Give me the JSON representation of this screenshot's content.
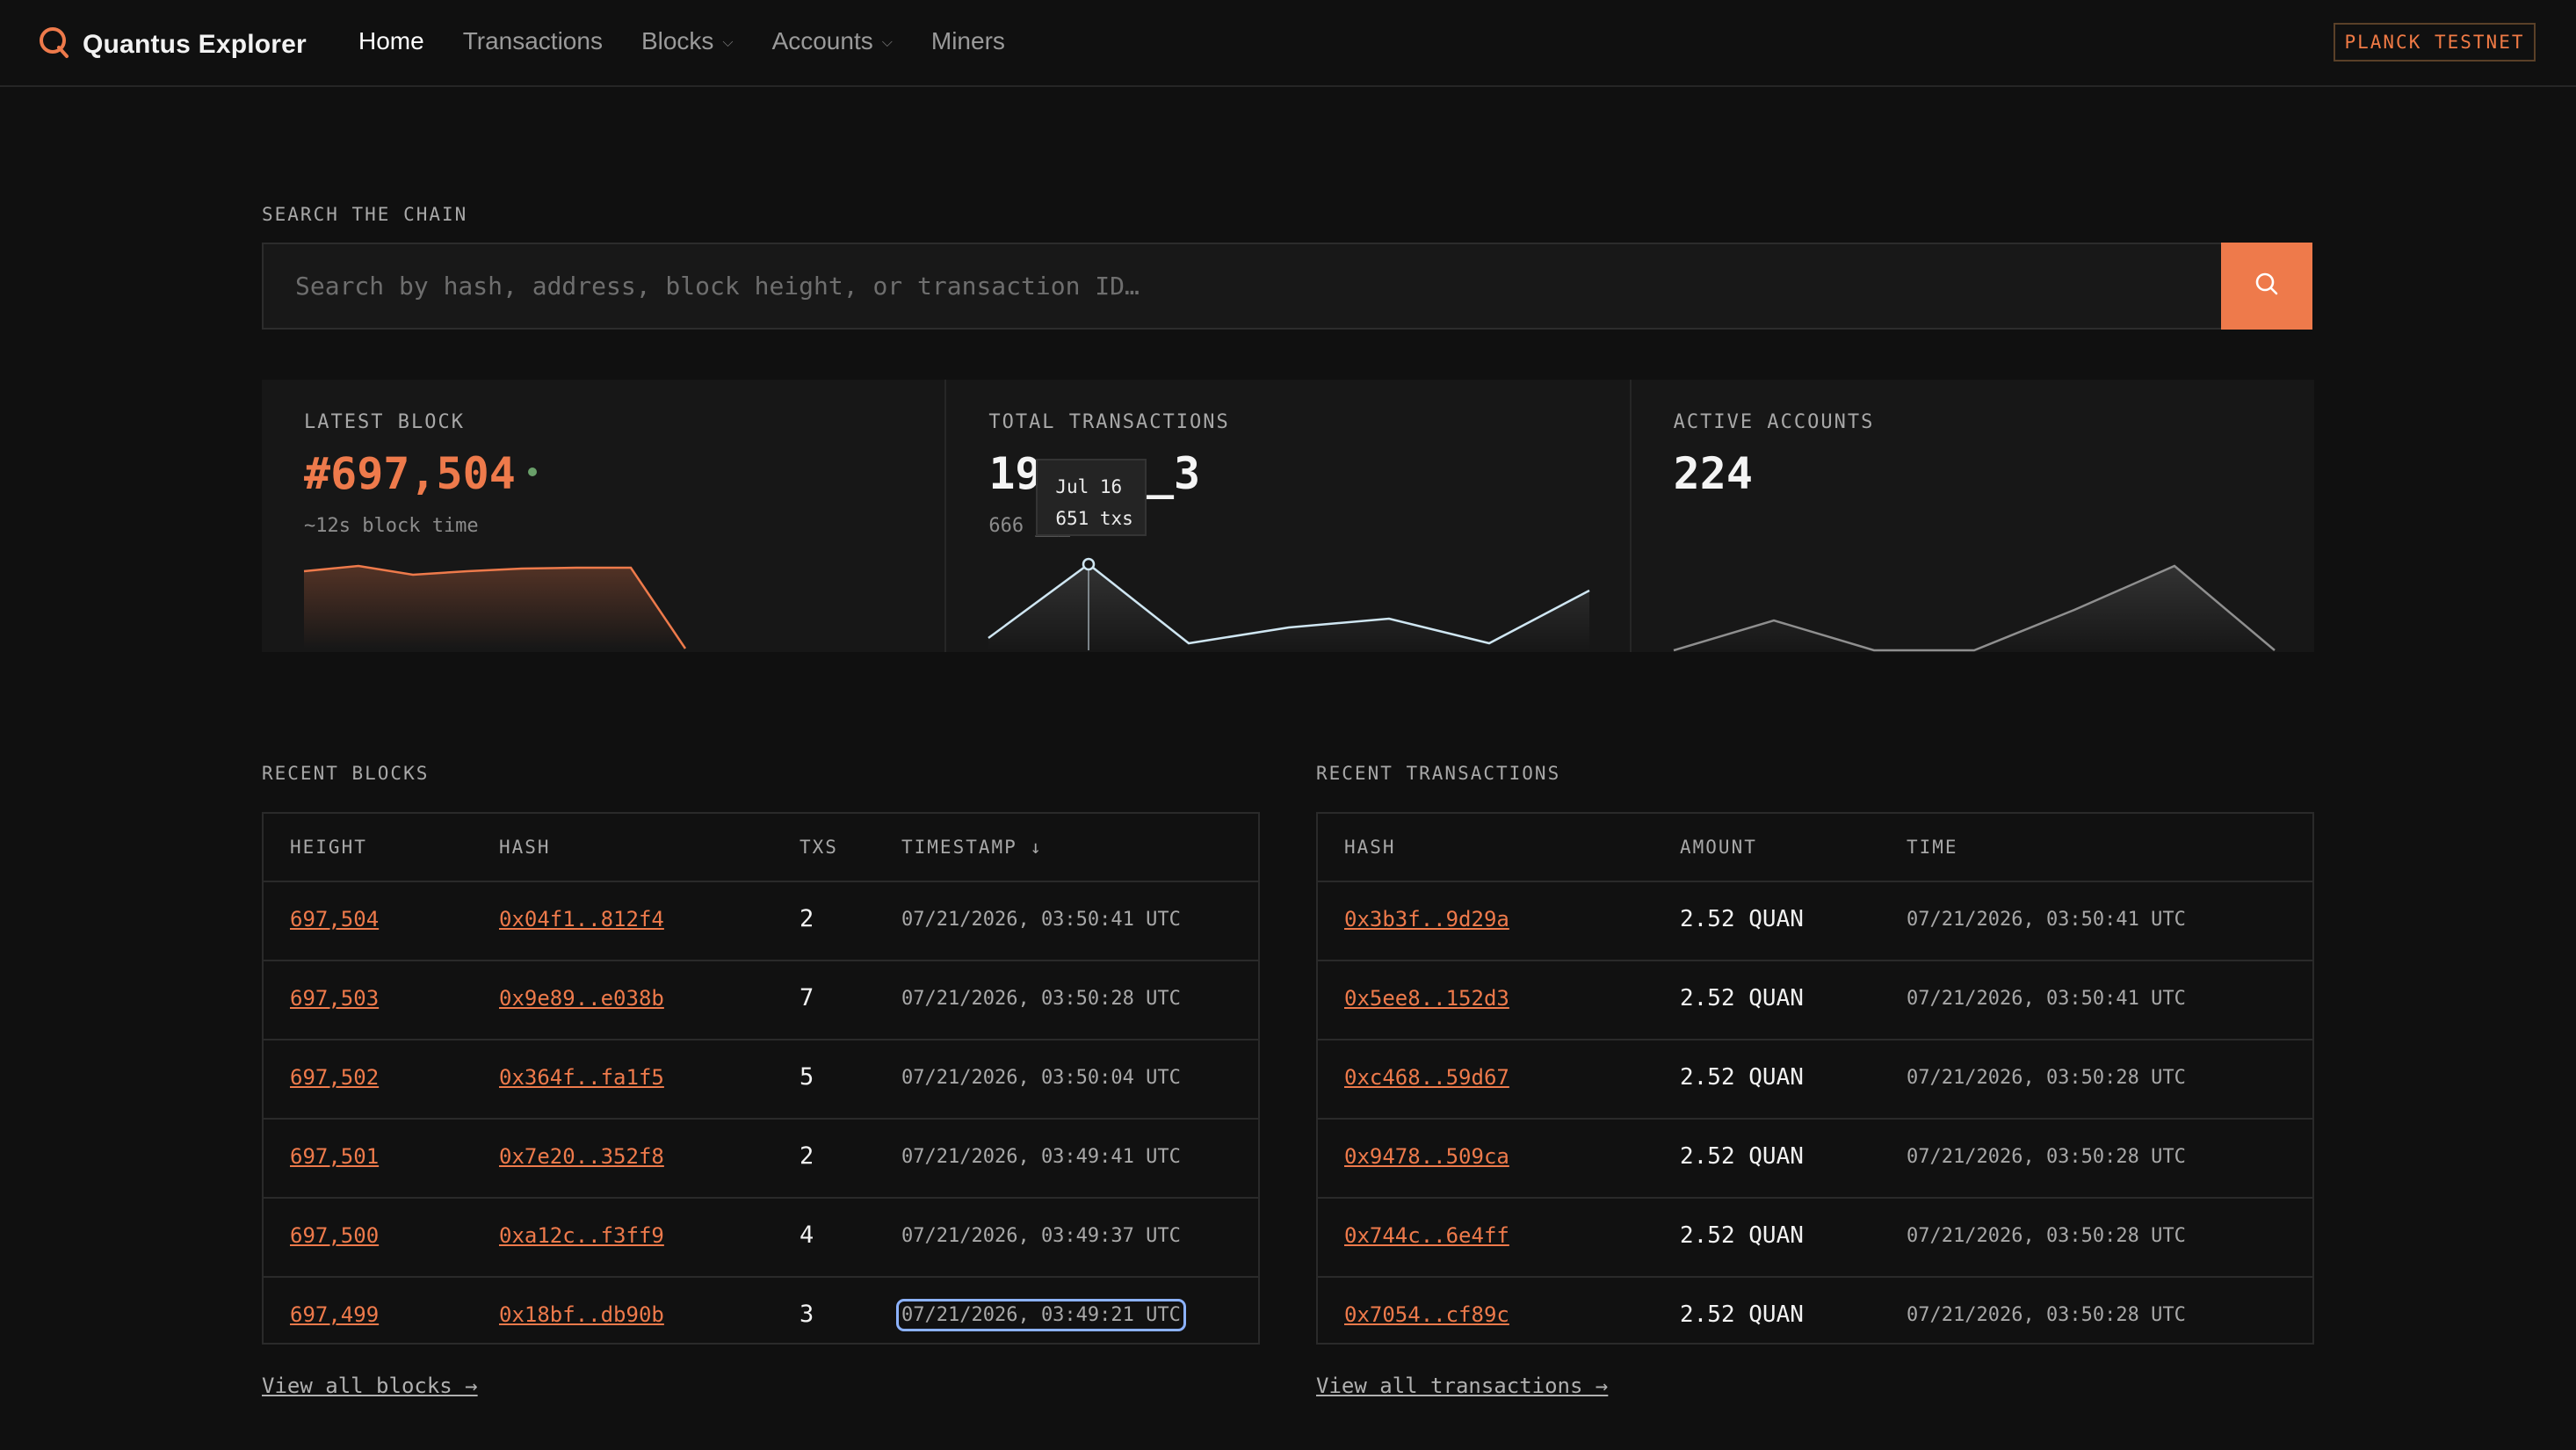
{
  "app": {
    "brand": "Quantus Explorer",
    "network": "PLANCK TESTNET",
    "nav": [
      {
        "label": "Home",
        "active": true,
        "dropdown": false
      },
      {
        "label": "Transactions",
        "active": false,
        "dropdown": false
      },
      {
        "label": "Blocks",
        "active": false,
        "dropdown": true
      },
      {
        "label": "Accounts",
        "active": false,
        "dropdown": true
      },
      {
        "label": "Miners",
        "active": false,
        "dropdown": false
      }
    ]
  },
  "search": {
    "label": "SEARCH THE CHAIN",
    "placeholder": "Search by hash, address, block height, or transaction ID…",
    "value": ""
  },
  "stats": {
    "latest_block": {
      "label": "LATEST BLOCK",
      "value": "#697,504",
      "sub": "~12s block time"
    },
    "total_transactions": {
      "label": "TOTAL TRANSACTIONS",
      "value": "19__,__3",
      "sub": "666 ___ 24h"
    },
    "active_accounts": {
      "label": "ACTIVE ACCOUNTS",
      "value": "224"
    },
    "tooltip": {
      "date": "Jul 16",
      "value": "651 txs"
    }
  },
  "colors": {
    "accent": "#ee7a4b",
    "live": "#6aa06a",
    "focus": "#8cb2ff"
  },
  "recent_blocks": {
    "title": "RECENT BLOCKS",
    "columns": [
      "HEIGHT",
      "HASH",
      "TXS",
      "TIMESTAMP ↓"
    ],
    "rows": [
      {
        "height": "697,504",
        "hash": "0x04f1..812f4",
        "txs": "2",
        "timestamp": "07/21/2026, 03:50:41 UTC"
      },
      {
        "height": "697,503",
        "hash": "0x9e89..e038b",
        "txs": "7",
        "timestamp": "07/21/2026, 03:50:28 UTC"
      },
      {
        "height": "697,502",
        "hash": "0x364f..fa1f5",
        "txs": "5",
        "timestamp": "07/21/2026, 03:50:04 UTC"
      },
      {
        "height": "697,501",
        "hash": "0x7e20..352f8",
        "txs": "2",
        "timestamp": "07/21/2026, 03:49:41 UTC"
      },
      {
        "height": "697,500",
        "hash": "0xa12c..f3ff9",
        "txs": "4",
        "timestamp": "07/21/2026, 03:49:37 UTC"
      },
      {
        "height": "697,499",
        "hash": "0x18bf..db90b",
        "txs": "3",
        "timestamp": "07/21/2026, 03:49:21 UTC"
      }
    ],
    "view_all": "View all blocks →"
  },
  "recent_transactions": {
    "title": "RECENT TRANSACTIONS",
    "columns": [
      "HASH",
      "AMOUNT",
      "TIME"
    ],
    "rows": [
      {
        "hash": "0x3b3f..9d29a",
        "amount": "2.52 QUAN",
        "time": "07/21/2026, 03:50:41 UTC"
      },
      {
        "hash": "0x5ee8..152d3",
        "amount": "2.52 QUAN",
        "time": "07/21/2026, 03:50:41 UTC"
      },
      {
        "hash": "0xc468..59d67",
        "amount": "2.52 QUAN",
        "time": "07/21/2026, 03:50:28 UTC"
      },
      {
        "hash": "0x9478..509ca",
        "amount": "2.52 QUAN",
        "time": "07/21/2026, 03:50:28 UTC"
      },
      {
        "hash": "0x744c..6e4ff",
        "amount": "2.52 QUAN",
        "time": "07/21/2026, 03:50:28 UTC"
      },
      {
        "hash": "0x7054..cf89c",
        "amount": "2.52 QUAN",
        "time": "07/21/2026, 03:50:28 UTC"
      }
    ],
    "view_all": "View all transactions →"
  }
}
